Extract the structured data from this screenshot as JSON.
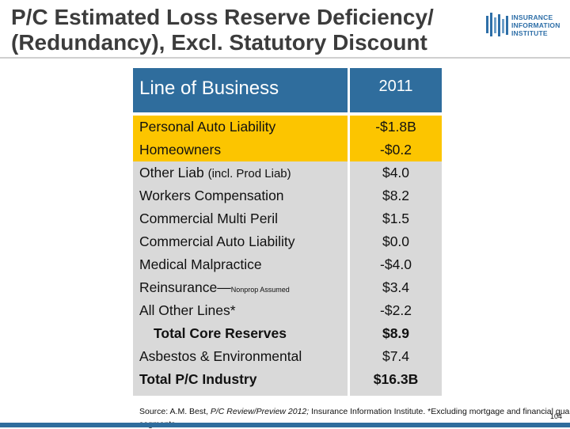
{
  "title": {
    "line1": "P/C Estimated Loss Reserve Deficiency/",
    "line2": "(Redundancy), Excl. Statutory Discount"
  },
  "logo": {
    "line1": "INSURANCE",
    "line2": "INFORMATION",
    "line3": "INSTITUTE",
    "color": "#2e6fa8"
  },
  "table": {
    "header": {
      "lob": "Line of Business",
      "year": "2011"
    },
    "header_color": "#2f6d9d",
    "highlight_color": "#fcc500",
    "rows": [
      {
        "lob": "Personal Auto Liability",
        "value": "-$1.8B"
      },
      {
        "lob": "Homeowners",
        "value": "-$0.2"
      },
      {
        "lob": "Other Liab ",
        "lob_small": "(incl. Prod Liab)",
        "value": "$4.0"
      },
      {
        "lob": "Workers Compensation",
        "value": "$8.2"
      },
      {
        "lob": "Commercial Multi Peril",
        "value": "$1.5"
      },
      {
        "lob": "Commercial Auto Liability",
        "value": "$0.0"
      },
      {
        "lob": "Medical Malpractice",
        "value": "-$4.0"
      },
      {
        "lob": "Reinsurance—",
        "lob_tiny": "Nonprop Assumed",
        "value": "$3.4"
      },
      {
        "lob": "All Other Lines*",
        "value": "-$2.2"
      },
      {
        "lob": "Total Core Reserves",
        "value": "$8.9"
      },
      {
        "lob": "Asbestos & Environmental",
        "value": "$7.4"
      },
      {
        "lob": "Total P/C Industry",
        "value": "$16.3B"
      }
    ]
  },
  "footer": {
    "source_prefix": "Source: A.M. Best, ",
    "source_italic": "P/C Review/Preview 2012;",
    "source_suffix": " Insurance Information Institute.   *Excluding mortgage and financial guaranty",
    "source_overflow": "segments.",
    "page_number": "104"
  }
}
